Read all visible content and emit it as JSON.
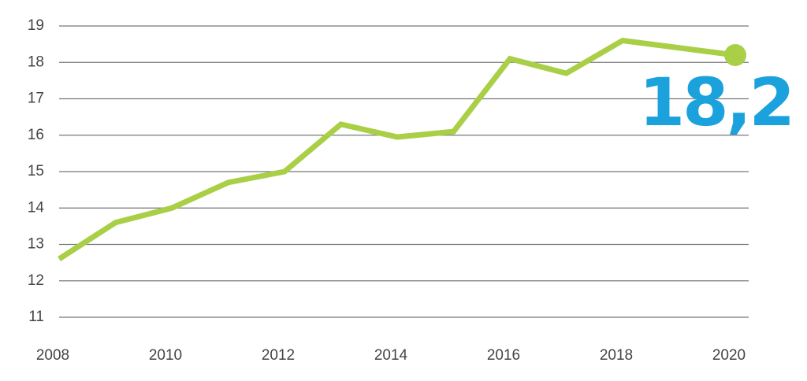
{
  "chart_data": {
    "type": "line",
    "x": [
      2008,
      2009,
      2010,
      2011,
      2012,
      2013,
      2014,
      2015,
      2016,
      2017,
      2018,
      2019,
      2020
    ],
    "values": [
      12.6,
      13.6,
      14.0,
      14.7,
      15.0,
      16.3,
      15.95,
      16.1,
      18.1,
      17.7,
      18.6,
      18.4,
      18.2
    ],
    "value_labels": [
      null,
      null,
      null,
      null,
      null,
      null,
      null,
      null,
      null,
      null,
      null,
      null,
      "18,2"
    ],
    "color": "#a9cf46",
    "label_color": "#1ba2dd",
    "xlim": [
      2008,
      2020
    ],
    "xticks": [
      2008,
      2010,
      2012,
      2014,
      2016,
      2018,
      2020
    ],
    "ylim": [
      11,
      19
    ],
    "yticks": [
      11,
      12,
      13,
      14,
      15,
      16,
      17,
      18,
      19
    ],
    "grid": true
  }
}
